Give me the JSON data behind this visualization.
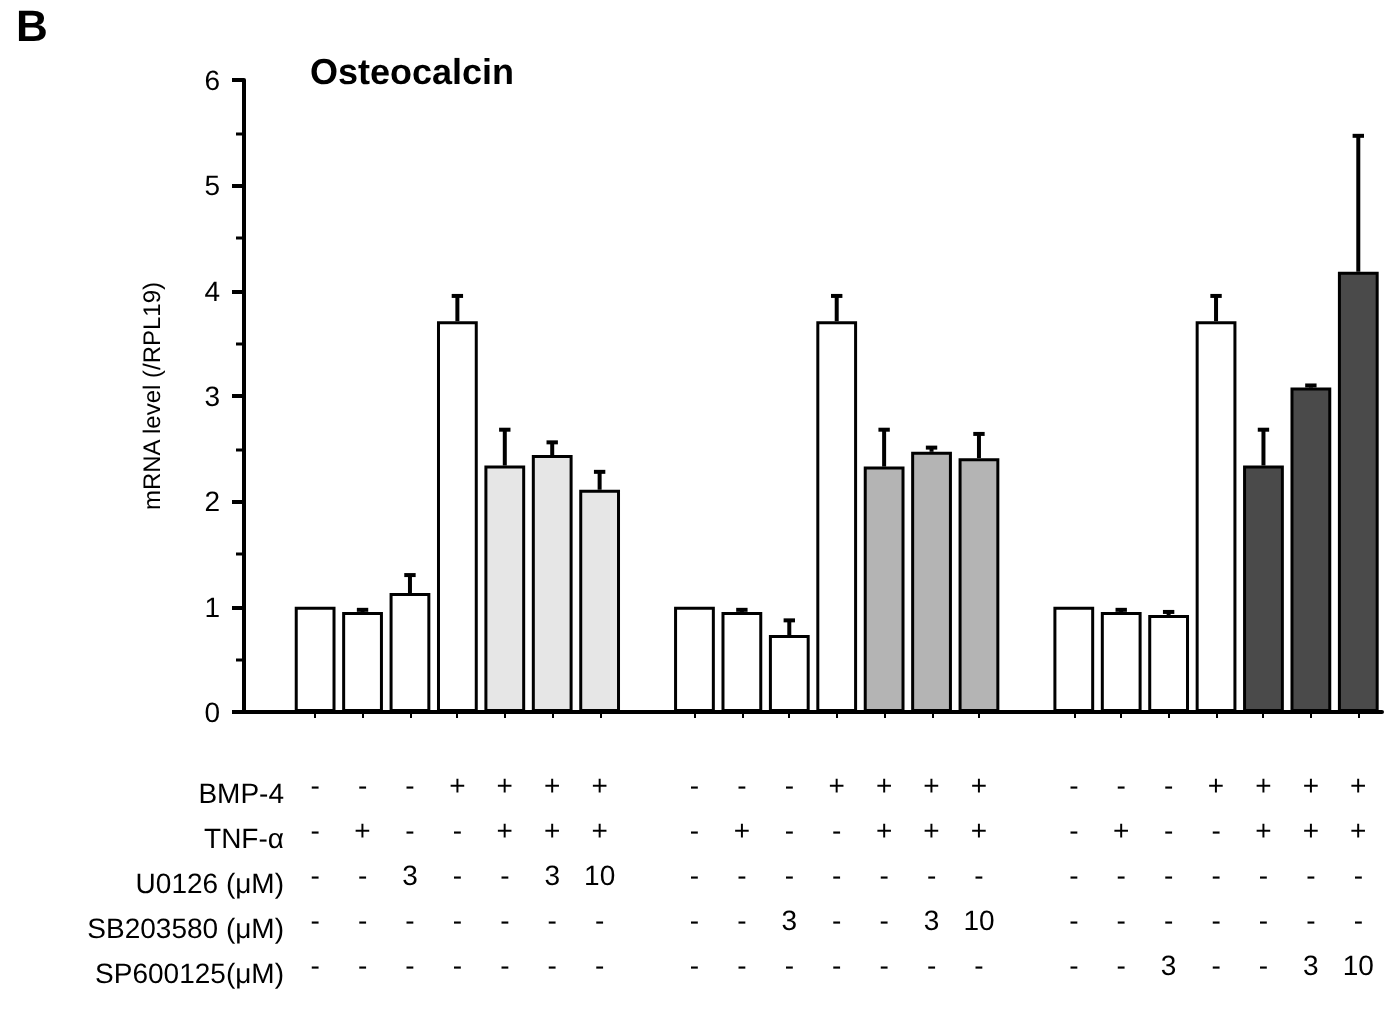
{
  "chart_data": {
    "type": "bar",
    "title": "Osteocalcin",
    "ylabel": "mRNA level (/RPL19)",
    "annotations": [
      "B",
      "BMP-4",
      "TNF-α",
      "U0126 (μM)",
      "SB203580 (μM)",
      "SP600125(μM)"
    ],
    "categories": [
      null,
      "-\n-\n-\n-\n-",
      "-\n+\n-\n-\n-",
      "-\n-\n3\n-\n-",
      "+\n-\n-\n-\n-",
      "+\n+\n-\n-\n-",
      "+\n+\n3\n-\n-",
      "+\n+\n10\n-\n-",
      null,
      "-\n-\n-\n-\n-",
      "-\n+\n-\n-\n-",
      "-\n-\n-\n3\n-",
      "+\n-\n-\n-\n-",
      "+\n+\n-\n-\n-",
      "+\n+\n-\n3\n-",
      "+\n+\n-\n10\n-",
      null,
      "-\n-\n-\n-\n-",
      "-\n+\n-\n-\n-",
      "-\n-\n-\n-\n3",
      "+\n-\n-\n-\n-",
      "+\n+\n-\n-\n-",
      "+\n+\n-\n-\n3",
      "+\n+\n-\n-\n10"
    ],
    "values": [
      null,
      1.0,
      0.95,
      1.13,
      3.71,
      2.34,
      2.44,
      2.11,
      null,
      1.0,
      0.95,
      0.73,
      3.71,
      2.33,
      2.47,
      2.41,
      null,
      1.0,
      0.95,
      0.92,
      3.71,
      2.34,
      3.08,
      4.18
    ],
    "errors": [
      null,
      null,
      [
        0.95,
        0.97
      ],
      [
        1.13,
        1.3
      ],
      [
        3.71,
        3.95
      ],
      [
        2.34,
        2.68
      ],
      [
        2.44,
        2.56
      ],
      [
        2.11,
        2.28
      ],
      null,
      null,
      [
        0.95,
        0.97
      ],
      [
        0.73,
        0.87
      ],
      [
        3.71,
        3.95
      ],
      [
        2.33,
        2.68
      ],
      [
        2.47,
        2.51
      ],
      [
        2.41,
        2.64
      ],
      null,
      null,
      [
        0.95,
        0.97
      ],
      [
        0.92,
        0.95
      ],
      [
        3.71,
        3.95
      ],
      [
        2.34,
        2.68
      ],
      [
        3.08,
        3.1
      ],
      [
        4.18,
        5.47
      ]
    ],
    "colors": [
      null,
      "#ffffff",
      "#ffffff",
      "#ffffff",
      "#ffffff",
      "#e6e6e6",
      "#e6e6e6",
      "#e6e6e6",
      null,
      "#ffffff",
      "#ffffff",
      "#ffffff",
      "#ffffff",
      "#b4b4b4",
      "#b4b4b4",
      "#b4b4b4",
      null,
      "#ffffff",
      "#ffffff",
      "#ffffff",
      "#ffffff",
      "#4a4a4a",
      "#4a4a4a",
      "#4a4a4a"
    ],
    "ylim": [
      0,
      6
    ],
    "yticks": [
      0,
      1,
      2,
      3,
      4,
      5,
      6
    ]
  }
}
